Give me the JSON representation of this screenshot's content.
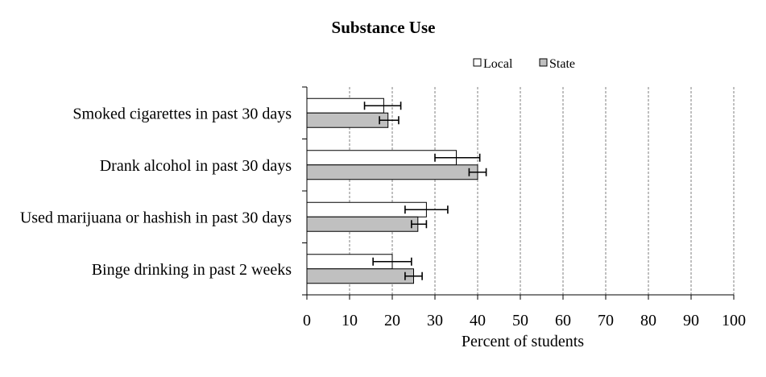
{
  "chart_data": {
    "type": "bar",
    "orientation": "horizontal",
    "title": "Substance Use",
    "xlabel": "Percent of students",
    "ylabel": "",
    "xlim": [
      0,
      100
    ],
    "xticks": [
      0,
      10,
      20,
      30,
      40,
      50,
      60,
      70,
      80,
      90,
      100
    ],
    "grid": "vertical dashed",
    "legend_position": "top-right",
    "categories": [
      "Smoked cigarettes in past 30 days",
      "Drank alcohol in past 30 days",
      "Used marijuana or hashish in past 30 days",
      "Binge drinking in past 2 weeks"
    ],
    "series": [
      {
        "name": "Local",
        "color": "#ffffff",
        "values": [
          18,
          35,
          28,
          20
        ],
        "error_low": [
          13.5,
          30,
          23,
          15.5
        ],
        "error_high": [
          22,
          40.5,
          33,
          24.5
        ]
      },
      {
        "name": "State",
        "color": "#c0c0c0",
        "values": [
          19,
          40,
          26,
          25
        ],
        "error_low": [
          17,
          38,
          24.5,
          23
        ],
        "error_high": [
          21.5,
          42,
          28,
          27
        ]
      }
    ]
  }
}
